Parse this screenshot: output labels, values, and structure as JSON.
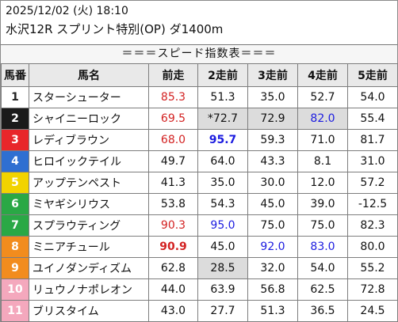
{
  "header": {
    "datetime": "2025/12/02 (火) 18:10",
    "race": "水沢12R スプリント特別(OP) ダ1400m"
  },
  "banner": "＝＝＝スピード指数表＝＝＝",
  "columns": [
    "馬番",
    "馬名",
    "前走",
    "2走前",
    "3走前",
    "4走前",
    "5走前"
  ],
  "colors": {
    "frame1": "#ffffff",
    "frame2": "#1a1a1a",
    "frame3": "#e8262a",
    "frame4": "#2f6fd1",
    "frame5": "#f2d300",
    "frame6": "#2aa845",
    "frame7": "#f28c1e",
    "frame8": "#f28c1e",
    "frame9": "#f4a8bd",
    "highlight_red": "#d32222",
    "highlight_blue": "#1c1ce0",
    "shade": "#dcdcdc"
  },
  "rows": [
    {
      "no": "1",
      "name": "スターシューター",
      "v": [
        "85.3",
        "51.3",
        "35.0",
        "52.7",
        "54.0"
      ]
    },
    {
      "no": "2",
      "name": "シャイニーロック",
      "v": [
        "69.5",
        "*72.7",
        "72.9",
        "82.0",
        "55.4"
      ]
    },
    {
      "no": "3",
      "name": "レディブラウン",
      "v": [
        "68.0",
        "95.7",
        "59.3",
        "71.0",
        "81.7"
      ]
    },
    {
      "no": "4",
      "name": "ヒロイックテイル",
      "v": [
        "49.7",
        "64.0",
        "43.3",
        "8.1",
        "31.0"
      ]
    },
    {
      "no": "5",
      "name": "アップテンペスト",
      "v": [
        "41.3",
        "35.0",
        "30.0",
        "12.0",
        "57.2"
      ]
    },
    {
      "no": "6",
      "name": "ミヤギシリウス",
      "v": [
        "53.8",
        "54.3",
        "45.0",
        "39.0",
        "-12.5"
      ]
    },
    {
      "no": "7",
      "name": "スプラウティング",
      "v": [
        "90.3",
        "95.0",
        "75.0",
        "75.0",
        "82.3"
      ]
    },
    {
      "no": "8",
      "name": "ミニアチュール",
      "v": [
        "90.9",
        "45.0",
        "92.0",
        "83.0",
        "80.0"
      ]
    },
    {
      "no": "9",
      "name": "ユイノダンディズム",
      "v": [
        "62.8",
        "28.5",
        "32.0",
        "54.0",
        "55.2"
      ]
    },
    {
      "no": "10",
      "name": "リュウノナポレオン",
      "v": [
        "44.0",
        "63.9",
        "56.8",
        "62.5",
        "72.8"
      ]
    },
    {
      "no": "11",
      "name": "ブリスタイム",
      "v": [
        "43.0",
        "27.7",
        "51.3",
        "36.5",
        "24.5"
      ]
    }
  ]
}
